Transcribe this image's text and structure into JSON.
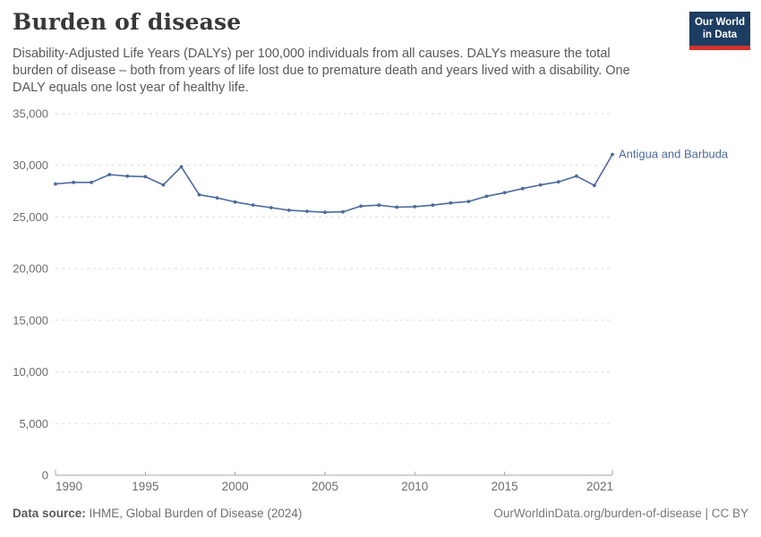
{
  "header": {
    "title": "Burden of disease",
    "subtitle_lines": [
      "Disability-Adjusted Life Years (DALYs) per 100,000 individuals from all causes. DALYs measure the total",
      "burden of disease – both from years of life lost due to premature death and years lived with a disability. One",
      "DALY equals one lost year of healthy life."
    ]
  },
  "logo": {
    "line1": "Our World",
    "line2": "in Data",
    "bg_color": "#1d3d63",
    "bar_color": "#d0342c"
  },
  "chart_data": {
    "type": "line",
    "title": "Burden of disease",
    "xlabel": "",
    "ylabel": "",
    "ylim": [
      0,
      35000
    ],
    "grid": "dashed-horizontal",
    "legend_position": "end-of-line-label",
    "x": [
      1990,
      1991,
      1992,
      1993,
      1994,
      1995,
      1996,
      1997,
      1998,
      1999,
      2000,
      2001,
      2002,
      2003,
      2004,
      2005,
      2006,
      2007,
      2008,
      2009,
      2010,
      2011,
      2012,
      2013,
      2014,
      2015,
      2016,
      2017,
      2018,
      2019,
      2020,
      2021
    ],
    "series": [
      {
        "name": "Antigua and Barbuda",
        "color": "#4C6A9C",
        "values": [
          28200,
          28350,
          28350,
          29100,
          28950,
          28900,
          28100,
          29850,
          27150,
          26850,
          26450,
          26150,
          25900,
          25650,
          25550,
          25450,
          25500,
          26050,
          26150,
          25950,
          26000,
          26150,
          26350,
          26500,
          27000,
          27350,
          27750,
          28100,
          28400,
          28950,
          28050,
          31050
        ]
      }
    ],
    "ytick_values": [
      0,
      5000,
      10000,
      15000,
      20000,
      25000,
      30000,
      35000
    ],
    "ytick_labels": [
      "0",
      "5,000",
      "10,000",
      "15,000",
      "20,000",
      "25,000",
      "30,000",
      "35,000"
    ],
    "xtick_values": [
      1990,
      1995,
      2000,
      2005,
      2010,
      2015,
      2021
    ],
    "xtick_labels": [
      "1990",
      "1995",
      "2000",
      "2005",
      "2010",
      "2015",
      "2021"
    ],
    "axis_color": "#a5a5a5",
    "grid_color": "#dddddd",
    "tick_label_color": "#6d6d6d"
  },
  "footer": {
    "source_label": "Data source:",
    "source_text": " IHME, Global Burden of Disease (2024)",
    "right_text": "OurWorldinData.org/burden-of-disease | CC BY"
  }
}
